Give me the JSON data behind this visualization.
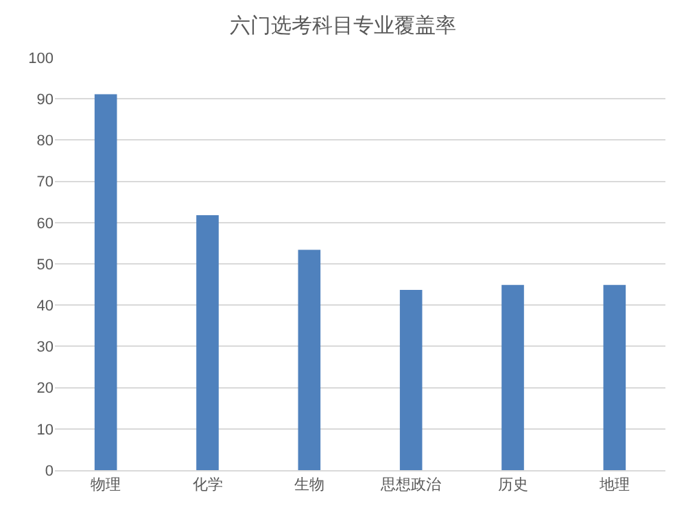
{
  "chart_data": {
    "type": "bar",
    "title": "六门选考科目专业覆盖率",
    "categories": [
      "物理",
      "化学",
      "生物",
      "思想政治",
      "历史",
      "地理"
    ],
    "values": [
      91.1,
      61.8,
      53.4,
      43.7,
      44.9,
      44.9
    ],
    "color": "#4f81bd",
    "ylim": [
      0,
      100
    ],
    "yticks": [
      0,
      10,
      20,
      30,
      40,
      50,
      60,
      70,
      80,
      90,
      100
    ],
    "grid": "y"
  }
}
